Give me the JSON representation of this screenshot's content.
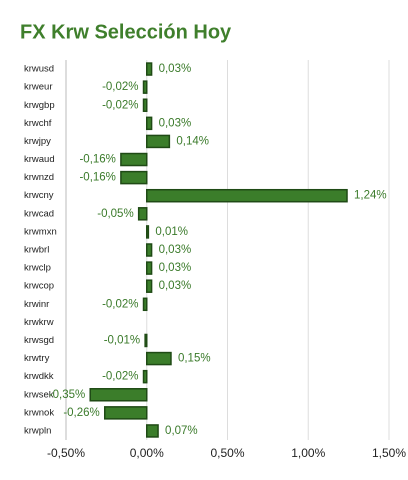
{
  "chart_data": {
    "type": "hbar",
    "title": "FX Krw Selección Hoy",
    "categories": [
      "krwusd",
      "krweur",
      "krwgbp",
      "krwchf",
      "krwjpy",
      "krwaud",
      "krwnzd",
      "krwcny",
      "krwcad",
      "krwmxn",
      "krwbrl",
      "krwclp",
      "krwcop",
      "krwinr",
      "krwkrw",
      "krwsgd",
      "krwtry",
      "krwdkk",
      "krwsek",
      "krwnok",
      "krwpln"
    ],
    "values": [
      0.03,
      -0.02,
      -0.02,
      0.03,
      0.14,
      -0.16,
      -0.16,
      1.24,
      -0.05,
      0.01,
      0.03,
      0.03,
      0.03,
      -0.02,
      0,
      -0.01,
      0.15,
      -0.02,
      -0.35,
      -0.26,
      0.07
    ],
    "value_labels": [
      "0,03%",
      "-0,02%",
      "-0,02%",
      "0,03%",
      "0,14%",
      "-0,16%",
      "-0,16%",
      "1,24%",
      "-0,05%",
      "0,01%",
      "0,03%",
      "0,03%",
      "0,03%",
      "-0,02%",
      null,
      "-0,01%",
      "0,15%",
      "-0,02%",
      "-0,35%",
      "-0,26%",
      "0,07%"
    ],
    "color": "#3b7d2a",
    "xlim": [
      -0.5,
      1.5
    ],
    "xticks": [
      {
        "value": -0.5,
        "label": "-0,50%"
      },
      {
        "value": 0,
        "label": "0,00%"
      },
      {
        "value": 0.5,
        "label": "0,50%"
      },
      {
        "value": 1,
        "label": "1,00%"
      },
      {
        "value": 1.5,
        "label": "1,50%"
      }
    ],
    "grid": true
  }
}
